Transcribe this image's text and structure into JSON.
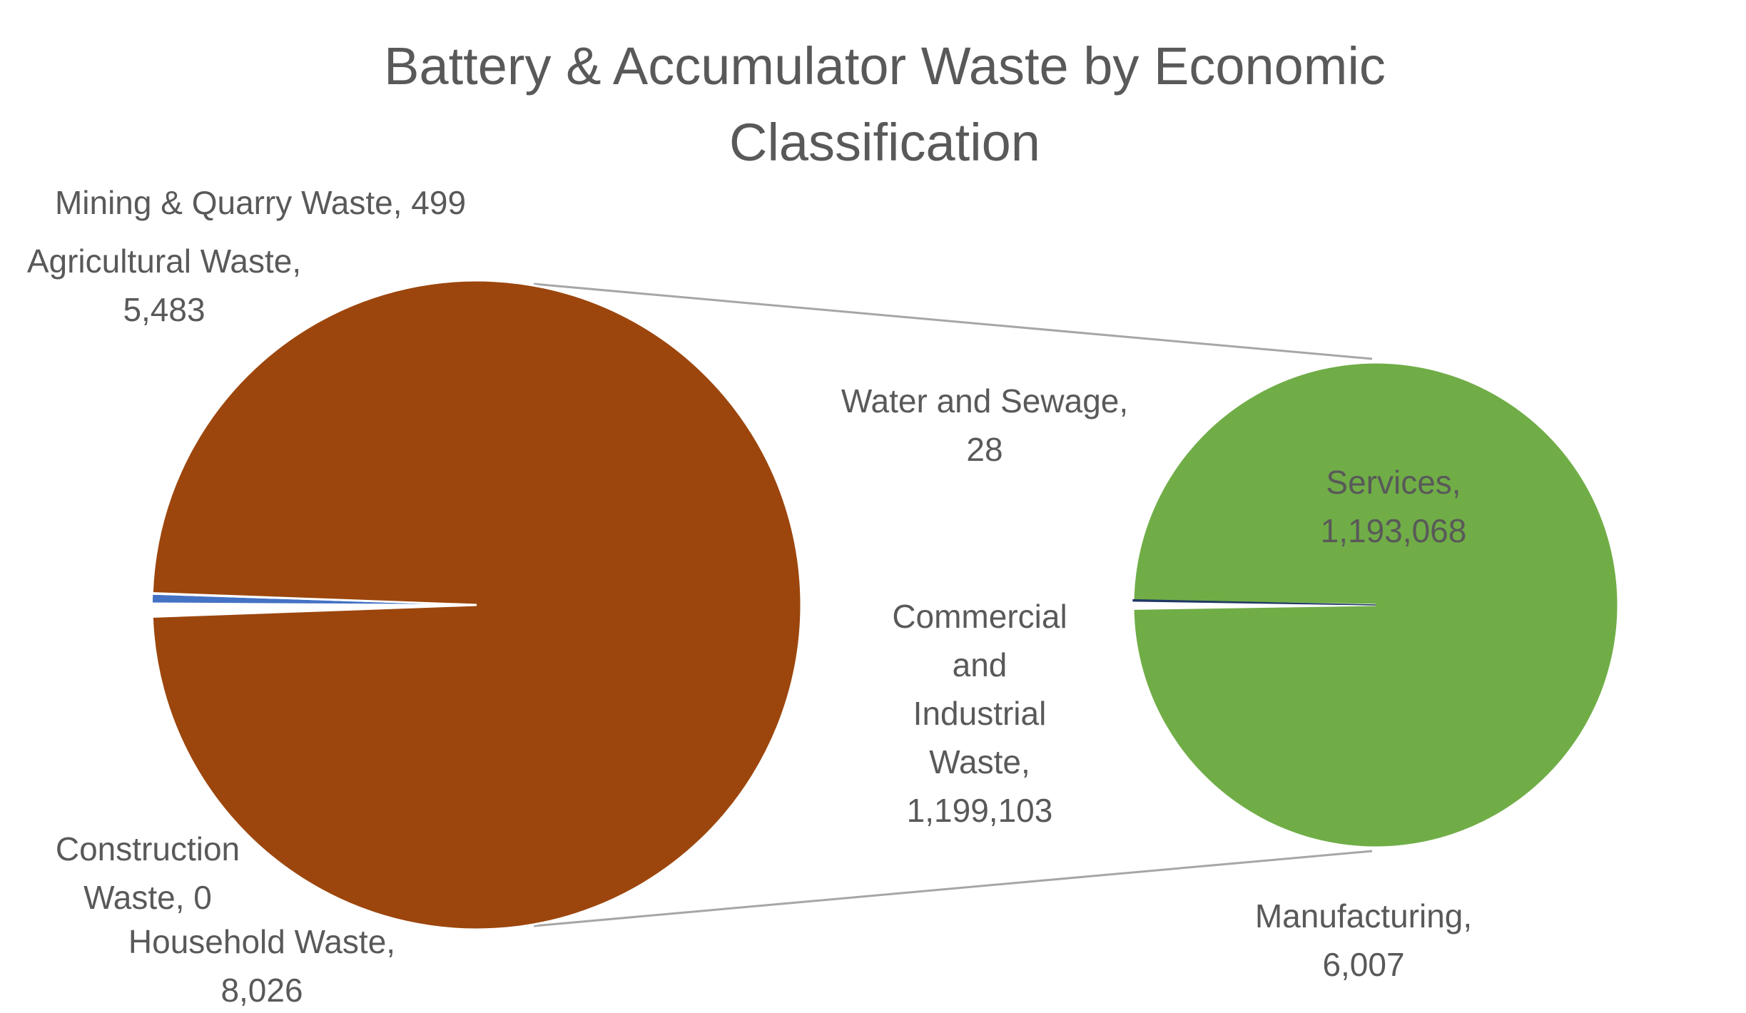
{
  "chart_data": {
    "type": "bar-of-pie",
    "title": "Battery & Accumulator  Waste by Economic Classification",
    "title_lines": [
      "Battery & Accumulator  Waste by Economic",
      "Classification"
    ],
    "primary_pie": {
      "slices": [
        {
          "label": "Commercial and Industrial Waste",
          "value": 1199103,
          "value_text": "1,199,103",
          "color": "#9C460D"
        },
        {
          "label": "Household Waste",
          "value": 8026,
          "value_text": "8,026",
          "color": "#FFFFFF"
        },
        {
          "label": "Construction Waste",
          "value": 0,
          "value_text": "0",
          "color": "#A5A5A5"
        },
        {
          "label": "Agricultural Waste",
          "value": 5483,
          "value_text": "5,483",
          "color": "#4472C4"
        },
        {
          "label": "Mining & Quarry Waste",
          "value": 499,
          "value_text": "499",
          "color": "#FFC000"
        }
      ]
    },
    "secondary_pie": {
      "breakdown_of": "Commercial and Industrial Waste",
      "slices": [
        {
          "label": "Services",
          "value": 1193068,
          "value_text": "1,193,068",
          "color": "#70AD47"
        },
        {
          "label": "Manufacturing",
          "value": 6007,
          "value_text": "6,007",
          "color": "#FFFFFF"
        },
        {
          "label": "Water and Sewage",
          "value": 28,
          "value_text": "28",
          "color": "#1F3864"
        }
      ]
    },
    "labels": {
      "mining": [
        "Mining & Quarry Waste, 499"
      ],
      "agricultural": [
        "Agricultural Waste,",
        "5,483"
      ],
      "construction": [
        "Construction",
        "Waste, 0"
      ],
      "household": [
        "Household Waste,",
        "8,026"
      ],
      "water": [
        "Water and Sewage,",
        "28"
      ],
      "services": [
        "Services,",
        "1,193,068"
      ],
      "commercial": [
        "Commercial",
        "and",
        "Industrial",
        "Waste,",
        "1,199,103"
      ],
      "manufacturing": [
        "Manufacturing,",
        "6,007"
      ]
    },
    "connector_color": "#A6A6A6",
    "legend": "none"
  }
}
